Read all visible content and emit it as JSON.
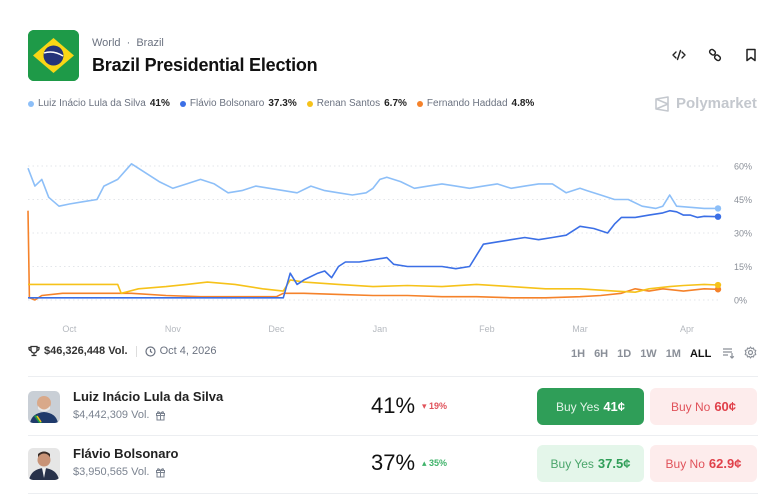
{
  "header": {
    "breadcrumb": [
      "World",
      "Brazil"
    ],
    "breadcrumb_sep": "·",
    "title": "Brazil Presidential Election",
    "icons": [
      "embed-icon",
      "link-icon",
      "bookmark-icon"
    ]
  },
  "brand": "Polymarket",
  "legend": [
    {
      "name": "Luiz Inácio Lula da Silva",
      "value": "41%",
      "color": "#8dbff8"
    },
    {
      "name": "Flávio Bolsonaro",
      "value": "37.3%",
      "color": "#3b6fe6"
    },
    {
      "name": "Renan Santos",
      "value": "6.7%",
      "color": "#f6c21a"
    },
    {
      "name": "Fernando Haddad",
      "value": "4.8%",
      "color": "#f5822a"
    }
  ],
  "chart_data": {
    "type": "line",
    "title": "",
    "xlabel": "",
    "ylabel": "",
    "ylim": [
      0,
      60
    ],
    "y_ticks": [
      "0%",
      "15%",
      "30%",
      "45%",
      "60%"
    ],
    "y_tick_values": [
      0,
      15,
      30,
      45,
      60
    ],
    "x_ticks": [
      "Oct",
      "Nov",
      "Dec",
      "Jan",
      "Feb",
      "Mar",
      "Apr"
    ],
    "x_tick_positions": [
      0.06,
      0.21,
      0.36,
      0.51,
      0.665,
      0.8,
      0.955
    ],
    "grid": true,
    "legend_position": "top-left",
    "series": [
      {
        "name": "Luiz Inácio Lula da Silva",
        "color": "#8dbff8",
        "x": [
          0,
          0.01,
          0.02,
          0.03,
          0.045,
          0.06,
          0.08,
          0.1,
          0.11,
          0.13,
          0.15,
          0.17,
          0.19,
          0.21,
          0.23,
          0.25,
          0.27,
          0.29,
          0.31,
          0.33,
          0.35,
          0.37,
          0.39,
          0.41,
          0.43,
          0.45,
          0.47,
          0.49,
          0.5,
          0.51,
          0.52,
          0.54,
          0.56,
          0.58,
          0.6,
          0.62,
          0.64,
          0.66,
          0.68,
          0.7,
          0.72,
          0.74,
          0.76,
          0.78,
          0.8,
          0.81,
          0.83,
          0.85,
          0.87,
          0.89,
          0.91,
          0.92,
          0.93,
          0.94,
          0.96,
          0.98,
          1.0
        ],
        "values": [
          59,
          51,
          54,
          46,
          42,
          43,
          44,
          45,
          51,
          54,
          61,
          57,
          53,
          50,
          52,
          54,
          52,
          48,
          49,
          51,
          50,
          49,
          48,
          51,
          49,
          48,
          47,
          48,
          50,
          54,
          55,
          53,
          50,
          51,
          52,
          51,
          50,
          51,
          52,
          50,
          51,
          52,
          52,
          48,
          50,
          49,
          47,
          45,
          45,
          42,
          41,
          42,
          47,
          42,
          41.5,
          41,
          41
        ]
      },
      {
        "name": "Flávio Bolsonaro",
        "color": "#3b6fe6",
        "x": [
          0,
          0.05,
          0.1,
          0.2,
          0.3,
          0.35,
          0.37,
          0.38,
          0.39,
          0.4,
          0.42,
          0.43,
          0.44,
          0.45,
          0.46,
          0.48,
          0.5,
          0.52,
          0.53,
          0.55,
          0.57,
          0.6,
          0.62,
          0.64,
          0.65,
          0.66,
          0.68,
          0.7,
          0.72,
          0.74,
          0.76,
          0.78,
          0.8,
          0.82,
          0.84,
          0.85,
          0.86,
          0.88,
          0.9,
          0.92,
          0.93,
          0.94,
          0.95,
          0.96,
          0.97,
          0.98,
          1.0
        ],
        "values": [
          1,
          1,
          1,
          1,
          1,
          1,
          1,
          12,
          7,
          9,
          12,
          13,
          10,
          15,
          17,
          17,
          18,
          19,
          16,
          15,
          15,
          15,
          14,
          15,
          20,
          25,
          26,
          27,
          28,
          27,
          28,
          29,
          33,
          32,
          30,
          34,
          37,
          37,
          38,
          39,
          40,
          39.5,
          38,
          38,
          37,
          37.5,
          37.3
        ]
      },
      {
        "name": "Renan Santos",
        "color": "#f6c21a",
        "x": [
          0,
          0.005,
          0.13,
          0.135,
          0.16,
          0.2,
          0.23,
          0.26,
          0.3,
          0.34,
          0.37,
          0.38,
          0.4,
          0.45,
          0.5,
          0.55,
          0.6,
          0.65,
          0.7,
          0.75,
          0.8,
          0.85,
          0.88,
          0.9,
          0.93,
          0.95,
          0.98,
          1.0
        ],
        "values": [
          7,
          7,
          7,
          3,
          5,
          6,
          7,
          8,
          7,
          5,
          4,
          9,
          8,
          7,
          6,
          6.5,
          6,
          7,
          6,
          5,
          5,
          4,
          3.5,
          5,
          6,
          6.5,
          7,
          6.7
        ]
      },
      {
        "name": "Fernando Haddad",
        "color": "#f5822a",
        "x": [
          0,
          0.002,
          0.01,
          0.02,
          0.05,
          0.1,
          0.15,
          0.2,
          0.25,
          0.3,
          0.36,
          0.37,
          0.4,
          0.45,
          0.5,
          0.55,
          0.6,
          0.65,
          0.7,
          0.75,
          0.8,
          0.83,
          0.86,
          0.88,
          0.9,
          0.92,
          0.95,
          0.98,
          1.0
        ],
        "values": [
          40,
          1,
          0,
          2,
          3,
          3,
          3,
          2,
          1.5,
          1.5,
          1.5,
          3,
          3,
          2.5,
          2,
          2,
          1.5,
          1.5,
          1,
          1,
          1.5,
          2,
          3,
          5,
          4,
          5,
          4,
          5,
          4.8
        ]
      }
    ]
  },
  "stats": {
    "volume": "$46,326,448 Vol.",
    "end_date": "Oct 4, 2026"
  },
  "ranges": {
    "options": [
      "1H",
      "6H",
      "1D",
      "1W",
      "1M",
      "ALL"
    ],
    "selected": "ALL"
  },
  "outcomes": [
    {
      "name": "Luiz Inácio Lula da Silva",
      "volume": "$4,442,309 Vol.",
      "percent": "41%",
      "change": "19%",
      "change_dir": "down",
      "change_color": "#e0525a",
      "buy_yes_label": "Buy Yes",
      "buy_yes_price": "41¢",
      "buy_no_label": "Buy No",
      "buy_no_price": "60¢"
    },
    {
      "name": "Flávio Bolsonaro",
      "volume": "$3,950,565 Vol.",
      "percent": "37%",
      "change": "35%",
      "change_dir": "up",
      "change_color": "#3fb36a",
      "buy_yes_label": "Buy Yes",
      "buy_yes_price": "37.5¢",
      "buy_no_label": "Buy No",
      "buy_no_price": "62.9¢"
    }
  ]
}
